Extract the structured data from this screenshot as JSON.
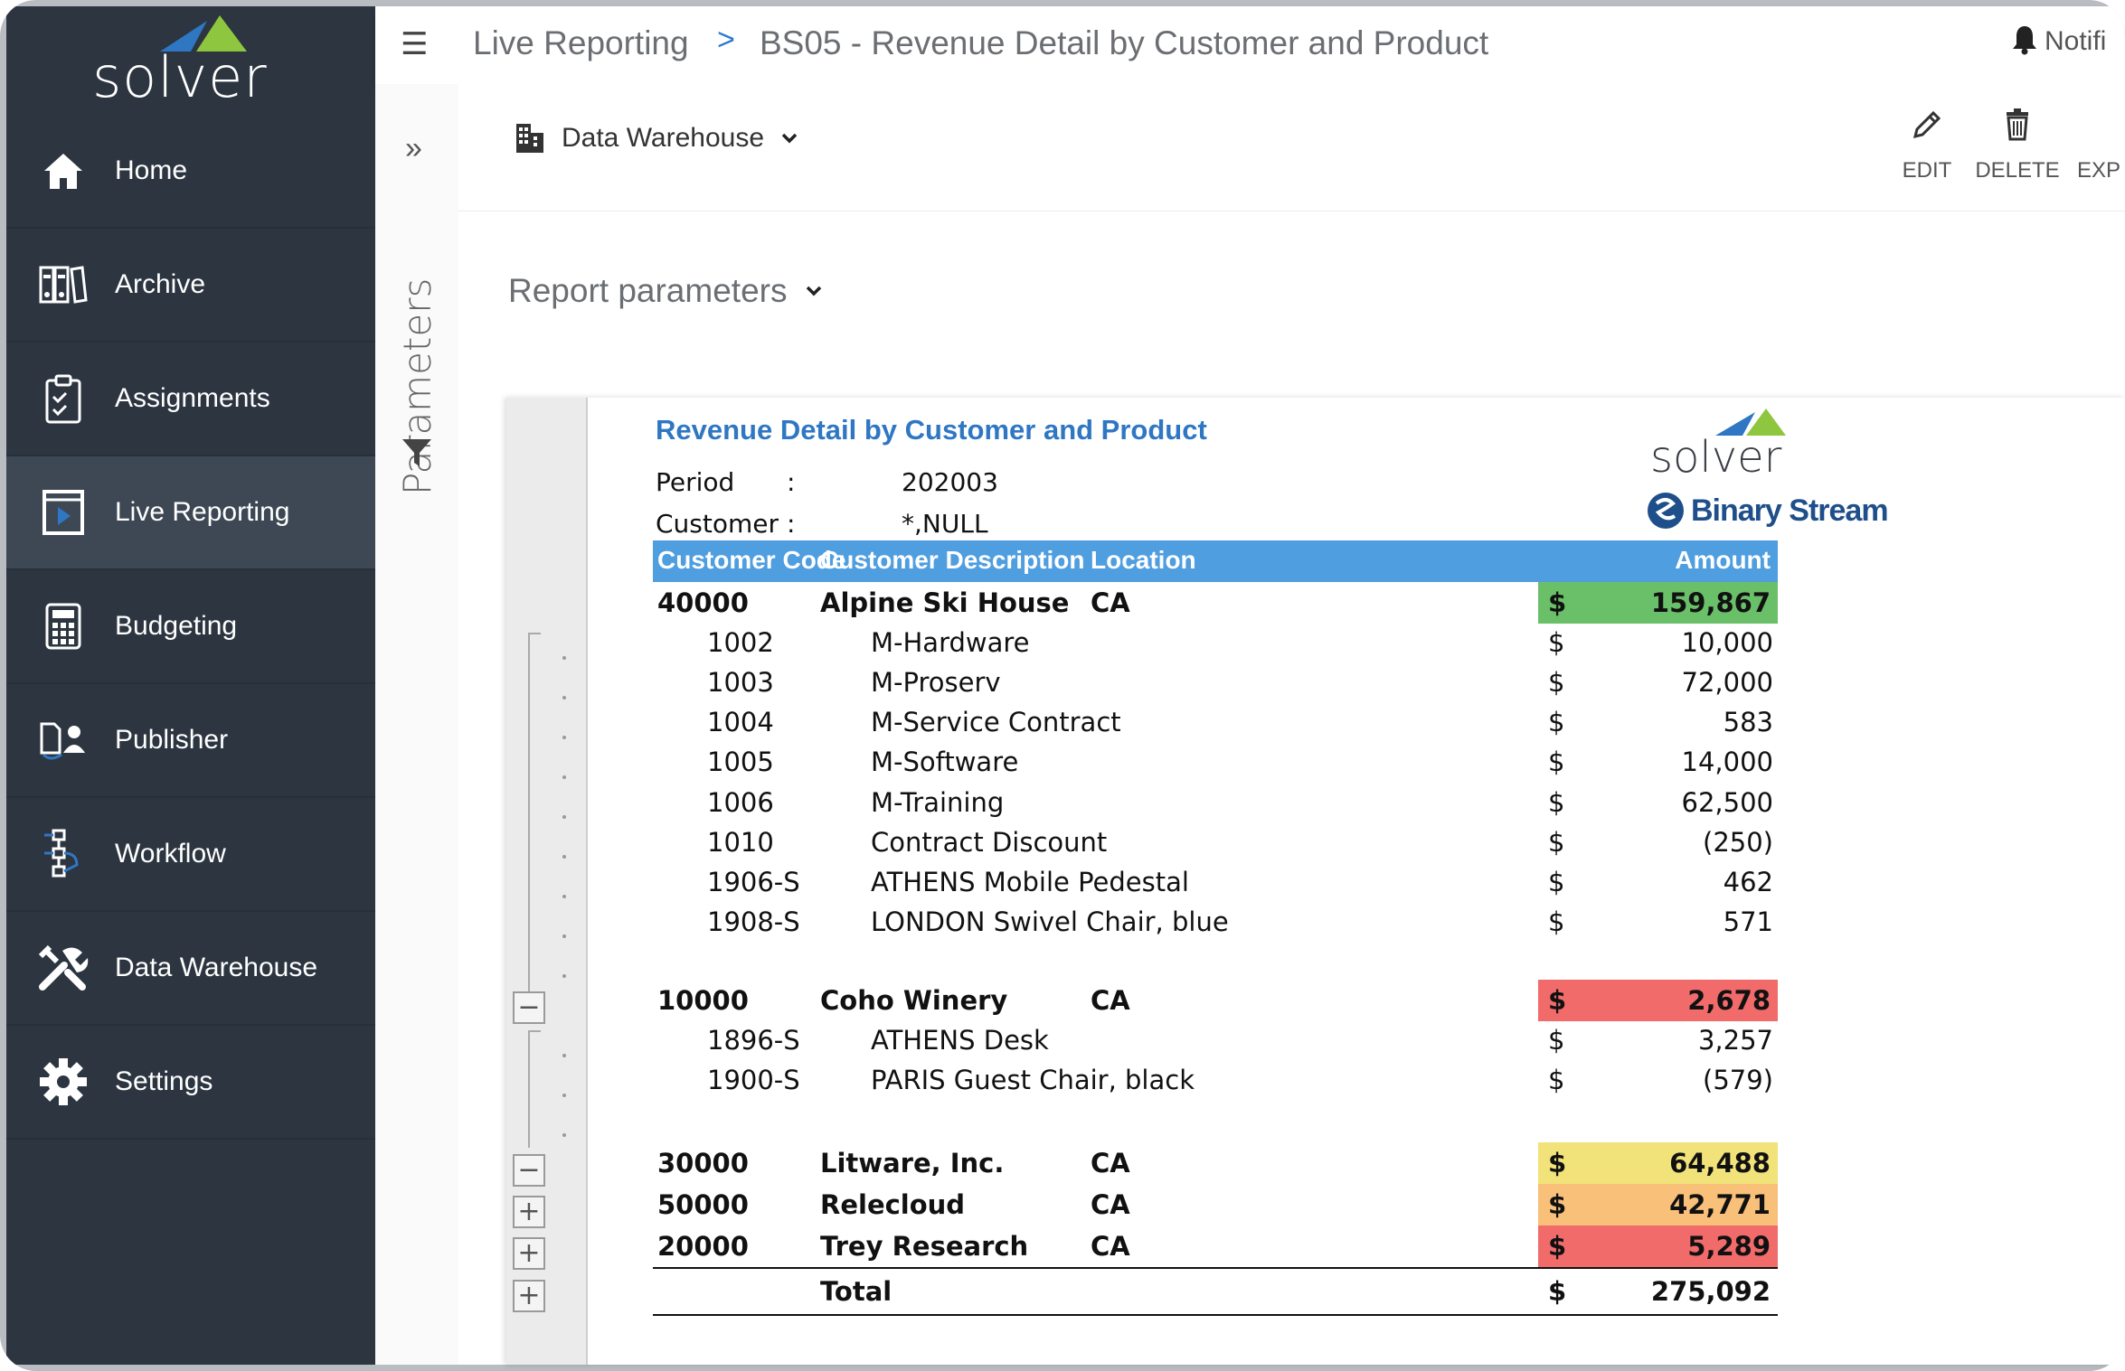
{
  "sidebar": {
    "logo": "solver",
    "items": [
      {
        "label": "Home",
        "icon": "home-icon"
      },
      {
        "label": "Archive",
        "icon": "archive-icon"
      },
      {
        "label": "Assignments",
        "icon": "clipboard-icon"
      },
      {
        "label": "Live Reporting",
        "icon": "report-icon",
        "active": true
      },
      {
        "label": "Budgeting",
        "icon": "calculator-icon"
      },
      {
        "label": "Publisher",
        "icon": "publisher-icon"
      },
      {
        "label": "Workflow",
        "icon": "workflow-icon"
      },
      {
        "label": "Data Warehouse",
        "icon": "tools-icon"
      },
      {
        "label": "Settings",
        "icon": "gear-icon"
      }
    ]
  },
  "header": {
    "breadcrumb_root": "Live Reporting",
    "breadcrumb_sep": ">",
    "breadcrumb_page": "BS05 - Revenue Detail by Customer and Product",
    "notifications": "Notifi"
  },
  "params_panel": {
    "label": "Parameters",
    "expand": "»"
  },
  "toolbar": {
    "source": "Data Warehouse",
    "edit": "EDIT",
    "delete": "DELETE",
    "export": "EXP"
  },
  "report_params_label": "Report parameters",
  "report": {
    "title": "Revenue Detail by Customer and Product",
    "period_label": "Period",
    "period_colon": ":",
    "period_value": "202003",
    "customer_label": "Customer",
    "customer_colon": ":",
    "customer_value": "*,NULL",
    "logo_solver": "solver",
    "logo_binary": "Binary Stream",
    "columns": [
      "Customer Code",
      "Customer Description",
      "Location",
      "Amount"
    ],
    "currency": "$",
    "rows": [
      {
        "code": "40000",
        "desc": "Alpine Ski House",
        "loc": "CA",
        "amount": "159,867",
        "type": "group",
        "color": "#6abf69"
      },
      {
        "code": "1002",
        "desc": "M-Hardware",
        "amount": "10,000",
        "type": "detail"
      },
      {
        "code": "1003",
        "desc": "M-Proserv",
        "amount": "72,000",
        "type": "detail"
      },
      {
        "code": "1004",
        "desc": "M-Service Contract",
        "amount": "583",
        "type": "detail"
      },
      {
        "code": "1005",
        "desc": "M-Software",
        "amount": "14,000",
        "type": "detail"
      },
      {
        "code": "1006",
        "desc": "M-Training",
        "amount": "62,500",
        "type": "detail"
      },
      {
        "code": "1010",
        "desc": "Contract Discount",
        "amount": "(250)",
        "type": "detail"
      },
      {
        "code": "1906-S",
        "desc": "ATHENS Mobile Pedestal",
        "amount": "462",
        "type": "detail"
      },
      {
        "code": "1908-S",
        "desc": "LONDON Swivel Chair, blue",
        "amount": "571",
        "type": "detail"
      },
      {
        "code": "10000",
        "desc": "Coho Winery",
        "loc": "CA",
        "amount": "2,678",
        "type": "group",
        "color": "#f26b6b"
      },
      {
        "code": "1896-S",
        "desc": "ATHENS Desk",
        "amount": "3,257",
        "type": "detail"
      },
      {
        "code": "1900-S",
        "desc": "PARIS Guest Chair, black",
        "amount": "(579)",
        "type": "detail"
      },
      {
        "code": "30000",
        "desc": "Litware, Inc.",
        "loc": "CA",
        "amount": "64,488",
        "type": "group",
        "color": "#f1e27a"
      },
      {
        "code": "50000",
        "desc": "Relecloud",
        "loc": "CA",
        "amount": "42,771",
        "type": "group",
        "color": "#f9c07a"
      },
      {
        "code": "20000",
        "desc": "Trey Research",
        "loc": "CA",
        "amount": "5,289",
        "type": "group",
        "color": "#f26b6b"
      }
    ],
    "total_label": "Total",
    "total_amount": "275,092"
  }
}
